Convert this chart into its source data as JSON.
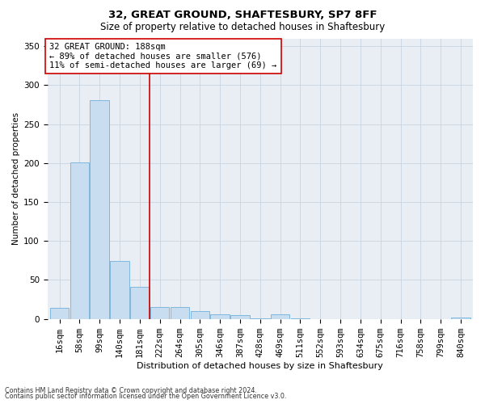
{
  "title1": "32, GREAT GROUND, SHAFTESBURY, SP7 8FF",
  "title2": "Size of property relative to detached houses in Shaftesbury",
  "xlabel": "Distribution of detached houses by size in Shaftesbury",
  "ylabel": "Number of detached properties",
  "footnote1": "Contains HM Land Registry data © Crown copyright and database right 2024.",
  "footnote2": "Contains public sector information licensed under the Open Government Licence v3.0.",
  "annotation_line1": "32 GREAT GROUND: 188sqm",
  "annotation_line2": "← 89% of detached houses are smaller (576)",
  "annotation_line3": "11% of semi-detached houses are larger (69) →",
  "categories": [
    "16sqm",
    "58sqm",
    "99sqm",
    "140sqm",
    "181sqm",
    "222sqm",
    "264sqm",
    "305sqm",
    "346sqm",
    "387sqm",
    "428sqm",
    "469sqm",
    "511sqm",
    "552sqm",
    "593sqm",
    "634sqm",
    "675sqm",
    "716sqm",
    "758sqm",
    "799sqm",
    "840sqm"
  ],
  "values": [
    14,
    201,
    281,
    74,
    41,
    15,
    15,
    10,
    6,
    5,
    1,
    6,
    1,
    0,
    0,
    0,
    0,
    0,
    0,
    0,
    2
  ],
  "bar_color": "#c9ddf0",
  "bar_edge_color": "#7fb8de",
  "grid_color": "#c8d4e0",
  "background_color": "#e8eef4",
  "vline_color": "#cc0000",
  "vline_x_index": 4.5,
  "annotation_box_color": "#cc0000",
  "ylim": [
    0,
    360
  ],
  "yticks": [
    0,
    50,
    100,
    150,
    200,
    250,
    300,
    350
  ],
  "title1_fontsize": 9.5,
  "title2_fontsize": 8.5,
  "xlabel_fontsize": 8.0,
  "ylabel_fontsize": 7.5,
  "tick_fontsize": 7.5,
  "annot_fontsize": 7.5,
  "footnote_fontsize": 5.8
}
